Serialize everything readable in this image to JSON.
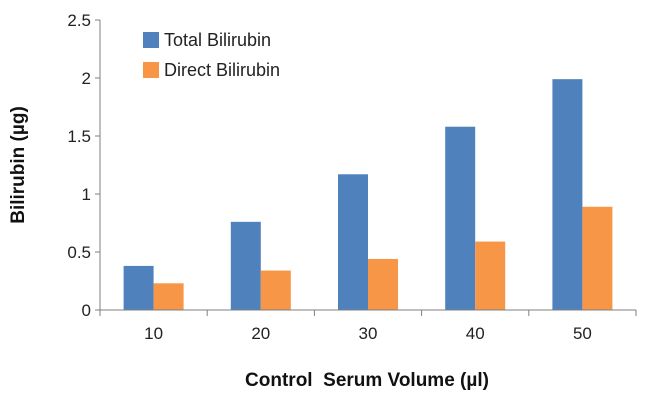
{
  "chart_data": {
    "type": "bar",
    "categories": [
      "10",
      "20",
      "30",
      "40",
      "50"
    ],
    "series": [
      {
        "name": "Total Bilirubin",
        "color": "#4f81bd",
        "values": [
          0.38,
          0.76,
          1.17,
          1.58,
          1.99
        ]
      },
      {
        "name": "Direct Bilirubin",
        "color": "#f79646",
        "values": [
          0.23,
          0.34,
          0.44,
          0.59,
          0.89
        ]
      }
    ],
    "xlabel": "Control  Serum Volume (µl)",
    "ylabel": "Bilirubin (µg)",
    "ylim": [
      0,
      2.5
    ],
    "yticks": [
      "0",
      "0.5",
      "1",
      "1.5",
      "2",
      "2.5"
    ],
    "legend": "top-left",
    "grid": false
  }
}
